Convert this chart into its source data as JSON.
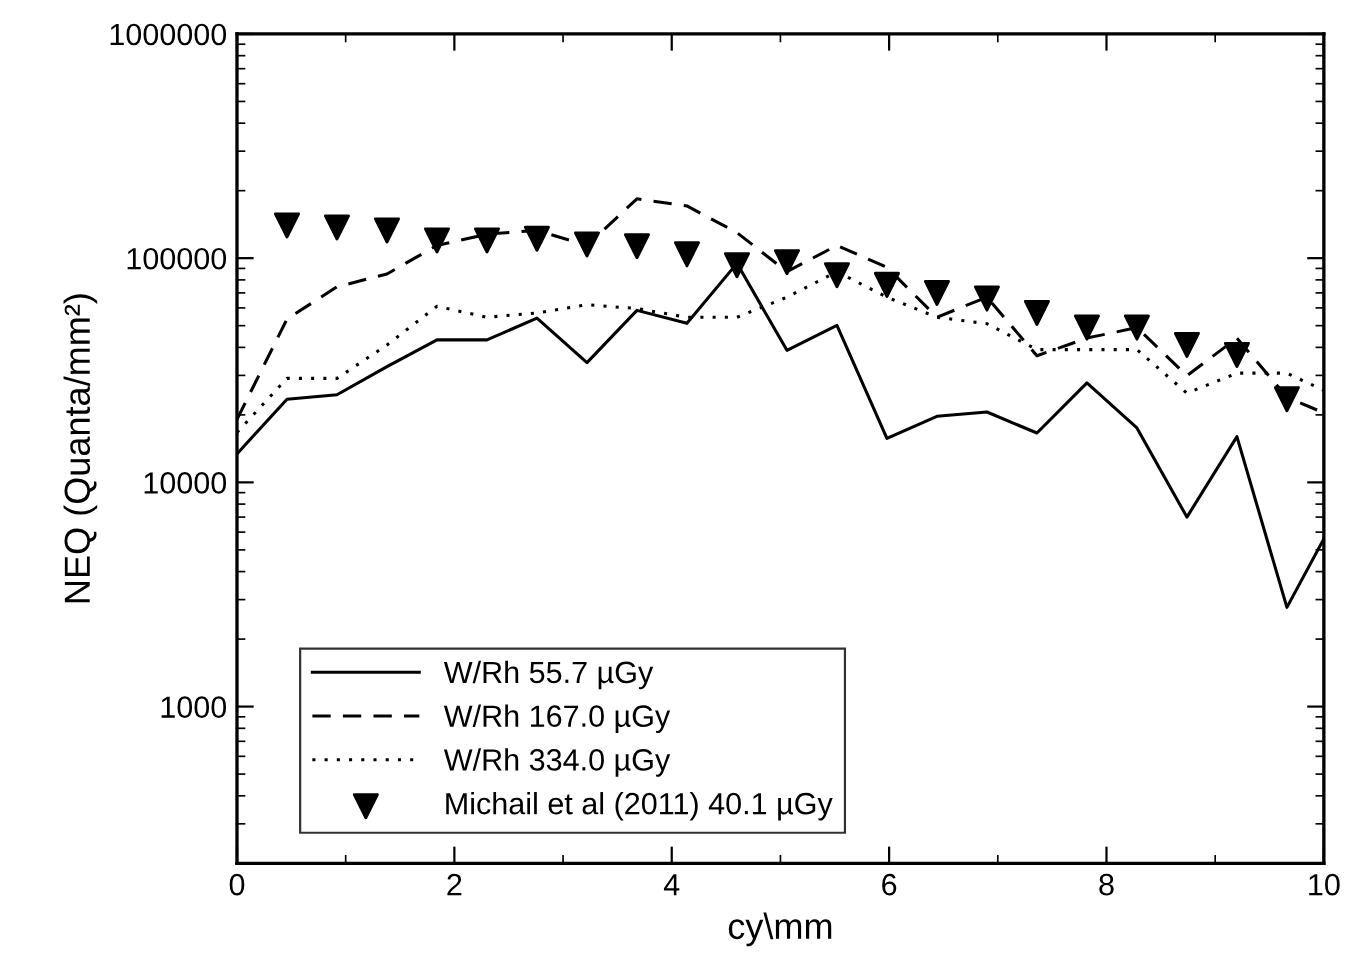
{
  "chart_data": {
    "type": "line",
    "xlabel": "cy\\mm",
    "ylabel": "NEQ (Quanta/mm²)",
    "log": "y",
    "grid": false,
    "legend": "bottom left",
    "xlim": [
      0,
      10
    ],
    "xticks": [
      0,
      2,
      4,
      6,
      8,
      10
    ],
    "ylim": [
      200,
      1000000
    ],
    "yticks": [
      1000,
      10000,
      100000,
      1000000
    ],
    "series": [
      {
        "name": "W/Rh 55.7 µGy",
        "color": "#000000",
        "line_style": "solid",
        "marker": "none",
        "x": [
          0,
          0.46,
          0.92,
          1.38,
          1.84,
          2.3,
          2.76,
          3.22,
          3.68,
          4.14,
          4.6,
          5.06,
          5.52,
          5.98,
          6.44,
          6.9,
          7.36,
          7.82,
          8.28,
          8.74,
          9.2,
          9.66,
          10
        ],
        "values": [
          13400,
          23500,
          24600,
          32800,
          43200,
          43200,
          54000,
          34200,
          58500,
          51200,
          94800,
          38800,
          50200,
          15700,
          19700,
          20600,
          16600,
          27800,
          17500,
          7000,
          16000,
          2770,
          5600
        ]
      },
      {
        "name": "W/Rh 167.0 µGy",
        "color": "#000000",
        "line_style": "dashed",
        "marker": "none",
        "x": [
          0,
          0.46,
          0.92,
          1.38,
          1.84,
          2.3,
          2.76,
          3.22,
          3.68,
          4.14,
          4.6,
          5.06,
          5.52,
          5.98,
          6.44,
          6.9,
          7.36,
          7.82,
          8.28,
          8.74,
          9.2,
          9.66,
          10
        ],
        "values": [
          19100,
          53500,
          74500,
          85000,
          114000,
          128000,
          133000,
          114000,
          184000,
          171000,
          130000,
          87000,
          114000,
          91000,
          54500,
          67000,
          36700,
          44000,
          49000,
          29900,
          44000,
          24000,
          20400
        ]
      },
      {
        "name": "W/Rh 334.0 µGy",
        "color": "#000000",
        "line_style": "dotted",
        "marker": "none",
        "x": [
          0,
          0.46,
          0.92,
          1.38,
          1.84,
          2.3,
          2.76,
          3.22,
          3.68,
          4.14,
          4.6,
          5.06,
          5.52,
          5.98,
          6.44,
          6.9,
          7.36,
          7.82,
          8.28,
          8.74,
          9.2,
          9.66,
          10
        ],
        "values": [
          16700,
          29100,
          29100,
          41000,
          61000,
          54500,
          57000,
          62000,
          59600,
          54500,
          54500,
          67000,
          87000,
          67000,
          54500,
          51000,
          39100,
          39100,
          39100,
          25000,
          30700,
          30700,
          25700
        ]
      },
      {
        "name": "Michail et al (2011) 40.1 µGy",
        "type": "scatter",
        "color": "#000000",
        "marker": "triangle",
        "x": [
          0.46,
          0.92,
          1.38,
          1.84,
          2.3,
          2.76,
          3.22,
          3.68,
          4.14,
          4.6,
          5.06,
          5.52,
          5.98,
          6.44,
          6.9,
          7.36,
          7.82,
          8.28,
          8.74,
          9.2,
          9.66
        ],
        "values": [
          140000,
          137000,
          133000,
          120000,
          120000,
          122000,
          115000,
          113000,
          104000,
          93000,
          96000,
          84000,
          76000,
          70000,
          66000,
          57000,
          49000,
          49000,
          41000,
          37000,
          23500
        ]
      }
    ]
  }
}
